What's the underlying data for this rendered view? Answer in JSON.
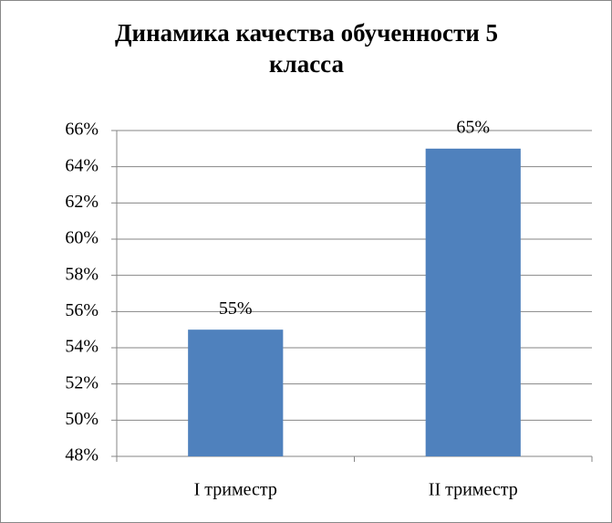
{
  "chart_data": {
    "type": "bar",
    "title": "Динамика качества обученности 5 класса",
    "categories": [
      "I триместр",
      "II триместр"
    ],
    "values": [
      55,
      65
    ],
    "value_labels": [
      "55%",
      "65%"
    ],
    "color": "#4f81bd",
    "ylim": [
      48,
      66
    ],
    "yticks": [
      {
        "value": 48,
        "label": "48%"
      },
      {
        "value": 50,
        "label": "50%"
      },
      {
        "value": 52,
        "label": "52%"
      },
      {
        "value": 54,
        "label": "54%"
      },
      {
        "value": 56,
        "label": "56%"
      },
      {
        "value": 58,
        "label": "58%"
      },
      {
        "value": 60,
        "label": "60%"
      },
      {
        "value": 62,
        "label": "62%"
      },
      {
        "value": 64,
        "label": "64%"
      },
      {
        "value": 66,
        "label": "66%"
      }
    ],
    "grid": true
  }
}
